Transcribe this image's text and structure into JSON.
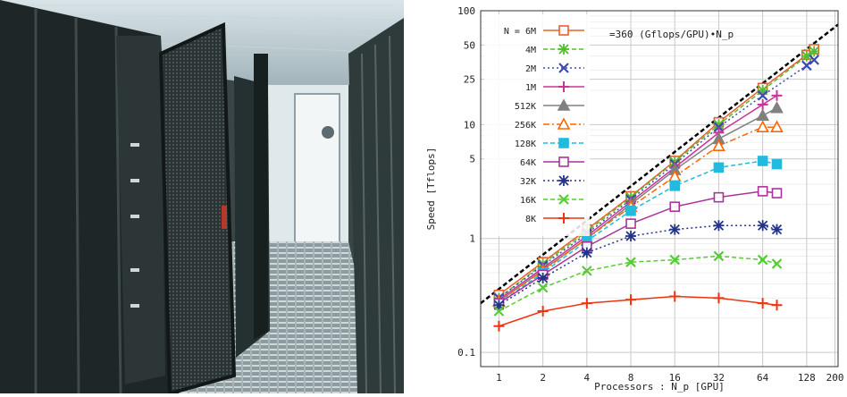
{
  "photo": {
    "subject": "server-room-photo"
  },
  "chart_data": {
    "type": "line",
    "xlabel": "Processors : N_p [GPU]",
    "ylabel": "Speed [Tflops]",
    "xscale": "log2",
    "yscale": "log10",
    "xlim": [
      0.75,
      210
    ],
    "ylim": [
      0.075,
      100
    ],
    "x_ticks": [
      "1",
      "2",
      "4",
      "8",
      "16",
      "32",
      "64",
      "128",
      "200"
    ],
    "y_ticks": [
      {
        "v": 0.1,
        "label": "0.1"
      },
      {
        "v": 1,
        "label": "1"
      },
      {
        "v": 5,
        "label": "5"
      },
      {
        "v": 10,
        "label": "10"
      },
      {
        "v": 25,
        "label": "25"
      },
      {
        "v": 50,
        "label": "50"
      },
      {
        "v": 100,
        "label": "100"
      }
    ],
    "grid": true,
    "legend_position": "top-left",
    "annotation": "=360 (Gflops/GPU)•N_p",
    "reference_line": {
      "slope_gflops_per_gpu": 360,
      "color": "#000000"
    },
    "series": [
      {
        "name": "N = 6M",
        "color": "#e8602c",
        "marker": "square",
        "dash": "",
        "x": [
          1,
          2,
          4,
          8,
          16,
          32,
          64,
          128,
          144
        ],
        "y": [
          0.32,
          0.62,
          1.2,
          2.35,
          4.8,
          10.5,
          21,
          41,
          46
        ]
      },
      {
        "name": "4M",
        "color": "#55bb33",
        "marker": "star",
        "dash": "5,3",
        "x": [
          1,
          2,
          4,
          8,
          16,
          32,
          64,
          128,
          144
        ],
        "y": [
          0.3,
          0.6,
          1.15,
          2.3,
          4.7,
          10,
          20,
          40,
          44
        ]
      },
      {
        "name": "2M",
        "color": "#3d4bb0",
        "marker": "x",
        "dash": "2,3",
        "x": [
          1,
          2,
          4,
          8,
          16,
          32,
          64,
          128,
          144
        ],
        "y": [
          0.3,
          0.58,
          1.1,
          2.2,
          4.5,
          9.5,
          18,
          33,
          37
        ]
      },
      {
        "name": "1M",
        "color": "#cc3399",
        "marker": "plus",
        "dash": "",
        "x": [
          1,
          2,
          4,
          8,
          16,
          32,
          64,
          80
        ],
        "y": [
          0.29,
          0.55,
          1.05,
          2.1,
          4.2,
          8.5,
          15,
          18
        ]
      },
      {
        "name": "512K",
        "color": "#808080",
        "marker": "triangle",
        "dash": "",
        "x": [
          1,
          2,
          4,
          8,
          16,
          32,
          64,
          80
        ],
        "y": [
          0.28,
          0.53,
          1.0,
          2.0,
          4.0,
          7.5,
          12,
          14
        ]
      },
      {
        "name": "256K",
        "color": "#ff6600",
        "marker": "triangle-open",
        "dash": "7,3,2,3",
        "x": [
          1,
          2,
          4,
          8,
          16,
          32,
          64,
          80
        ],
        "y": [
          0.28,
          0.52,
          1.0,
          1.9,
          3.5,
          6.5,
          9.5,
          9.5
        ]
      },
      {
        "name": "128K",
        "color": "#22bbdd",
        "marker": "square-filled",
        "dash": "5,3",
        "x": [
          1,
          2,
          4,
          8,
          16,
          32,
          64,
          80
        ],
        "y": [
          0.27,
          0.5,
          0.95,
          1.75,
          2.9,
          4.2,
          4.8,
          4.5
        ]
      },
      {
        "name": "64K",
        "color": "#aa3399",
        "marker": "square-open",
        "dash": "",
        "x": [
          1,
          2,
          4,
          8,
          16,
          32,
          64,
          80
        ],
        "y": [
          0.27,
          0.48,
          0.85,
          1.35,
          1.9,
          2.3,
          2.6,
          2.5
        ]
      },
      {
        "name": "32K",
        "color": "#223388",
        "marker": "star-dark",
        "dash": "2,3",
        "x": [
          1,
          2,
          4,
          8,
          16,
          32,
          64,
          80
        ],
        "y": [
          0.26,
          0.45,
          0.75,
          1.05,
          1.2,
          1.3,
          1.3,
          1.2
        ]
      },
      {
        "name": "16K",
        "color": "#55cc33",
        "marker": "x-green",
        "dash": "5,3",
        "x": [
          1,
          2,
          4,
          8,
          16,
          32,
          64,
          80
        ],
        "y": [
          0.23,
          0.37,
          0.52,
          0.62,
          0.65,
          0.7,
          0.65,
          0.6
        ]
      },
      {
        "name": "8K",
        "color": "#ee3311",
        "marker": "plus-red",
        "dash": "",
        "x": [
          1,
          2,
          4,
          8,
          16,
          32,
          64,
          80
        ],
        "y": [
          0.17,
          0.23,
          0.27,
          0.29,
          0.31,
          0.3,
          0.27,
          0.26
        ]
      }
    ]
  }
}
